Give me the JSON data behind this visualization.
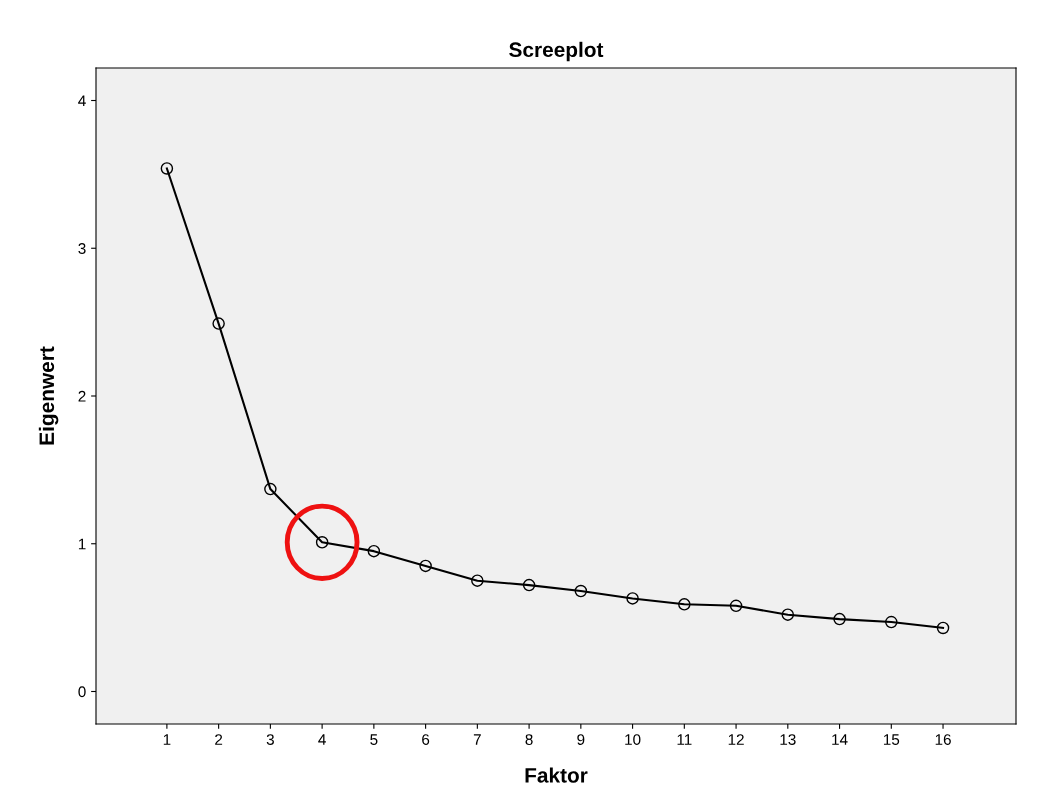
{
  "chart_data": {
    "type": "line",
    "title": "Screeplot",
    "xlabel": "Faktor",
    "ylabel": "Eigenwert",
    "categories": [
      "1",
      "2",
      "3",
      "4",
      "5",
      "6",
      "7",
      "8",
      "9",
      "10",
      "11",
      "12",
      "13",
      "14",
      "15",
      "16"
    ],
    "series": [
      {
        "color": "#000000",
        "values": [
          3.54,
          2.49,
          1.37,
          1.01,
          0.95,
          0.85,
          0.75,
          0.72,
          0.68,
          0.63,
          0.59,
          0.58,
          0.52,
          0.49,
          0.47,
          0.43
        ]
      }
    ],
    "ylim": [
      -0.22,
      4.22
    ],
    "yticks": [
      0,
      1,
      2,
      3,
      4
    ],
    "marker": "circle",
    "line_style": "solid",
    "grid": false,
    "legend": false
  }
}
